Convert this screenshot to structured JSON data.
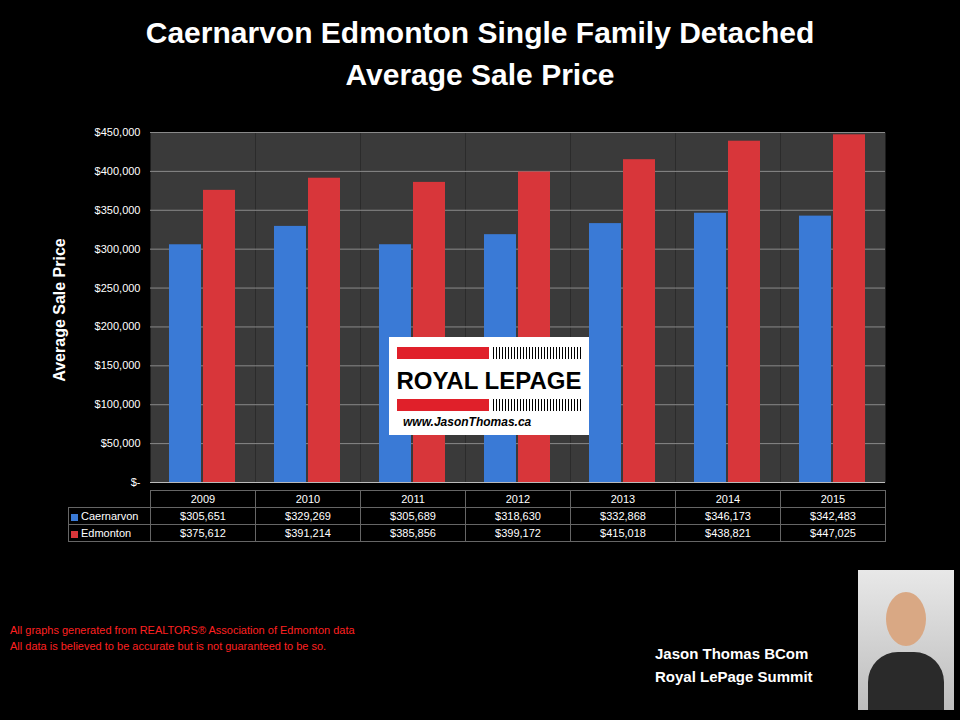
{
  "chart_data": {
    "type": "bar",
    "title": "Caernarvon Edmonton Single Family Detached",
    "subtitle": "Average Sale Price",
    "y_label": "Average Sale Price",
    "categories": [
      "2009",
      "2010",
      "2011",
      "2012",
      "2013",
      "2014",
      "2015"
    ],
    "series": [
      {
        "name": "Caernarvon",
        "color": "#3a7ad6",
        "values": [
          305651,
          329269,
          305689,
          318630,
          332868,
          346173,
          342483
        ],
        "value_labels": [
          "$305,651",
          "$329,269",
          "$305,689",
          "$318,630",
          "$332,868",
          "$346,173",
          "$342,483"
        ]
      },
      {
        "name": "Edmonton",
        "color": "#d8363a",
        "values": [
          375612,
          391214,
          385856,
          399172,
          415018,
          438821,
          447025
        ],
        "value_labels": [
          "$375,612",
          "$391,214",
          "$385,856",
          "$399,172",
          "$415,018",
          "$438,821",
          "$447,025"
        ]
      }
    ],
    "ylim": [
      0,
      450000
    ],
    "yticks": [
      {
        "value": 0,
        "label": "$-"
      },
      {
        "value": 50000,
        "label": "$50,000"
      },
      {
        "value": 100000,
        "label": "$100,000"
      },
      {
        "value": 150000,
        "label": "$150,000"
      },
      {
        "value": 200000,
        "label": "$200,000"
      },
      {
        "value": 250000,
        "label": "$250,000"
      },
      {
        "value": 300000,
        "label": "$300,000"
      },
      {
        "value": 350000,
        "label": "$350,000"
      },
      {
        "value": 400000,
        "label": "$400,000"
      },
      {
        "value": 450000,
        "label": "$450,000"
      }
    ],
    "grid": true,
    "annotations": [
      "All graphs generated from REALTORS® Association of Edmonton data",
      "All data is believed to be accurate but is not guaranteed to be so.",
      "Jason Thomas BCom",
      "Royal LePage Summit",
      "ROYAL LEPAGE",
      "www.JasonThomas.ca"
    ]
  }
}
